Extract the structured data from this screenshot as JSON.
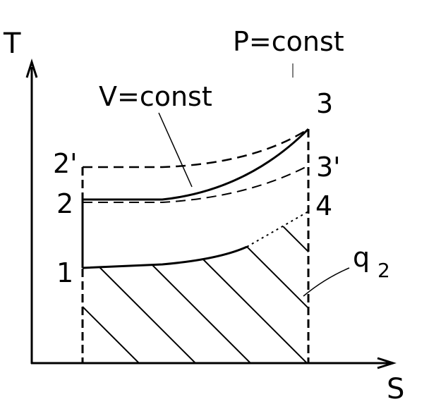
{
  "axes": {
    "y_label": "T",
    "x_label": "S"
  },
  "annotations": {
    "p_const": "P=const",
    "v_const": "V=const",
    "q2": {
      "main": "q",
      "sub": "2"
    }
  },
  "points": {
    "p1": "1",
    "p2": "2",
    "p2_prime": "2'",
    "p3": "3",
    "p3_prime": "3'",
    "p4": "4"
  }
}
